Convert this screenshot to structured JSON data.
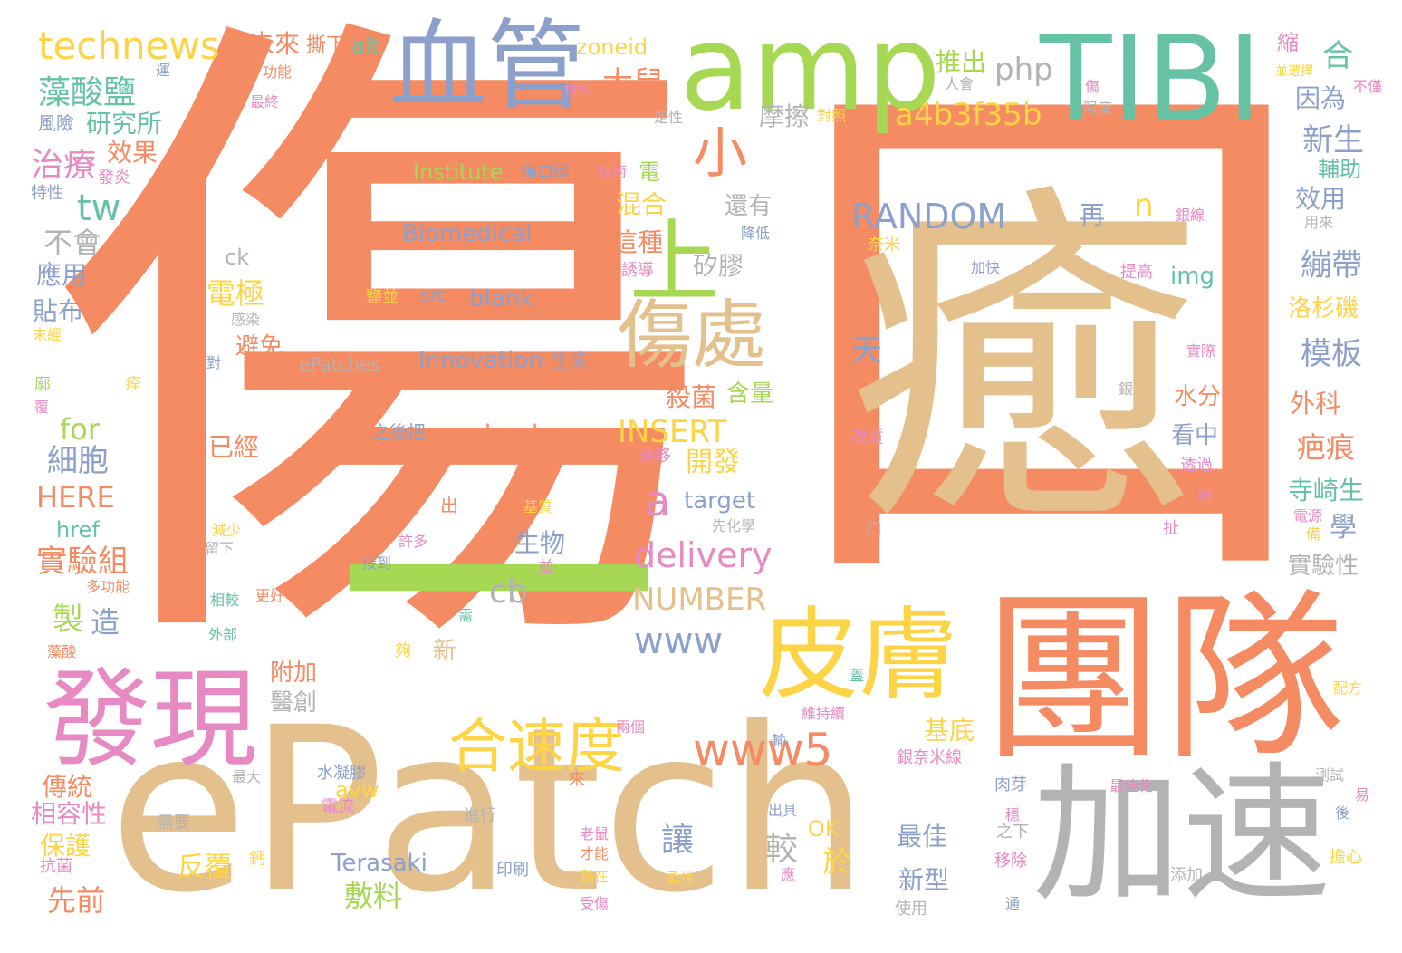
{
  "words": [
    {
      "text": "傷",
      "color": "#f48b63",
      "orient": "h"
    },
    {
      "text": "口",
      "color": "#f48b63",
      "orient": "h"
    },
    {
      "text": "癒",
      "color": "#e4c08c",
      "orient": "h"
    },
    {
      "text": "ePatch",
      "color": "#e4c08c",
      "orient": "h"
    },
    {
      "text": "團隊",
      "color": "#f48b63",
      "orient": "h"
    },
    {
      "text": "加速",
      "color": "#b3b3b3",
      "orient": "h"
    },
    {
      "text": "皮膚",
      "color": "#fdd445",
      "orient": "h"
    },
    {
      "text": "發現",
      "color": "#e78ac3",
      "orient": "h"
    },
    {
      "text": "amp",
      "color": "#a6d854",
      "orient": "h"
    },
    {
      "text": "TIBI",
      "color": "#66c2a5",
      "orient": "h"
    },
    {
      "text": "血管",
      "color": "#8da0cb",
      "orient": "h"
    },
    {
      "text": "一",
      "color": "#a6d854",
      "orient": "h"
    },
    {
      "text": "上",
      "color": "#a6d854",
      "orient": "h"
    },
    {
      "text": "傷處",
      "color": "#e4c08c",
      "orient": "h"
    },
    {
      "text": "合速度",
      "color": "#fdd445",
      "orient": "h"
    },
    {
      "text": "www5",
      "color": "#f48b63",
      "orient": "h"
    },
    {
      "text": "technews",
      "color": "#fdd445",
      "orient": "h"
    },
    {
      "text": "藻酸鹽",
      "color": "#66c2a5",
      "orient": "h"
    },
    {
      "text": "研究所",
      "color": "#66c2a5",
      "orient": "h"
    },
    {
      "text": "風險",
      "color": "#8da0cb",
      "orient": "h"
    },
    {
      "text": "治療",
      "color": "#e78ac3",
      "orient": "h"
    },
    {
      "text": "效果",
      "color": "#f48b63",
      "orient": "h"
    },
    {
      "text": "發炎",
      "color": "#e78ac3",
      "orient": "h"
    },
    {
      "text": "特性",
      "color": "#8da0cb",
      "orient": "h"
    },
    {
      "text": "tw",
      "color": "#66c2a5",
      "orient": "h"
    },
    {
      "text": "不會",
      "color": "#b3b3b3",
      "orient": "h"
    },
    {
      "text": "應用",
      "color": "#8da0cb",
      "orient": "h"
    },
    {
      "text": "貼布",
      "color": "#8da0cb",
      "orient": "h"
    },
    {
      "text": "未經",
      "color": "#fdd445",
      "orient": "h"
    },
    {
      "text": "for",
      "color": "#a6d854",
      "orient": "h"
    },
    {
      "text": "細胞",
      "color": "#8da0cb",
      "orient": "h"
    },
    {
      "text": "HERE",
      "color": "#f48b63",
      "orient": "h"
    },
    {
      "text": "href",
      "color": "#66c2a5",
      "orient": "h"
    },
    {
      "text": "實驗組",
      "color": "#f48b63",
      "orient": "h"
    },
    {
      "text": "製",
      "color": "#a6d854",
      "orient": "h"
    },
    {
      "text": "造",
      "color": "#8da0cb",
      "orient": "h"
    },
    {
      "text": "傳統",
      "color": "#f48b63",
      "orient": "h"
    },
    {
      "text": "相容性",
      "color": "#e78ac3",
      "orient": "h"
    },
    {
      "text": "保護",
      "color": "#fdd445",
      "orient": "h"
    },
    {
      "text": "抗菌",
      "color": "#e78ac3",
      "orient": "h"
    },
    {
      "text": "先前",
      "color": "#f48b63",
      "orient": "h"
    },
    {
      "text": "未來",
      "color": "#f48b63",
      "orient": "h"
    },
    {
      "text": "撕下",
      "color": "#f48b63",
      "orient": "h"
    },
    {
      "text": "alt",
      "color": "#66c2a5",
      "orient": "h"
    },
    {
      "text": "zoneid",
      "color": "#fdd445",
      "orient": "h"
    },
    {
      "text": "功能",
      "color": "#f48b63",
      "orient": "h"
    },
    {
      "text": "材料",
      "color": "#e78ac3",
      "orient": "h"
    },
    {
      "text": "大鼠",
      "color": "#f48b63",
      "orient": "h"
    },
    {
      "text": "小",
      "color": "#f48b63",
      "orient": "h"
    },
    {
      "text": "Institute",
      "color": "#a6d854",
      "orient": "h"
    },
    {
      "text": "傷口僅",
      "color": "#8da0cb",
      "orient": "h"
    },
    {
      "text": "希望",
      "color": "#f48b63",
      "orient": "h"
    },
    {
      "text": "技術",
      "color": "#e78ac3",
      "orient": "h"
    },
    {
      "text": "Biomedical",
      "color": "#8da0cb",
      "orient": "h"
    },
    {
      "text": "ck",
      "color": "#b3b3b3",
      "orient": "h"
    },
    {
      "text": "src",
      "color": "#8da0cb",
      "orient": "h"
    },
    {
      "text": "blank",
      "color": "#8da0cb",
      "orient": "h"
    },
    {
      "text": "電極",
      "color": "#fdd445",
      "orient": "h"
    },
    {
      "text": "避免",
      "color": "#f48b63",
      "orient": "h"
    },
    {
      "text": "感染",
      "color": "#b3b3b3",
      "orient": "h"
    },
    {
      "text": "ePatches",
      "color": "#b3b3b3",
      "orient": "h"
    },
    {
      "text": "Innovation",
      "color": "#8da0cb",
      "orient": "h"
    },
    {
      "text": "生成",
      "color": "#8da0cb",
      "orient": "h"
    },
    {
      "text": "之後把",
      "color": "#8da0cb",
      "orient": "h"
    },
    {
      "text": "border",
      "color": "#f48b63",
      "orient": "h"
    },
    {
      "text": "已經",
      "color": "#f48b63",
      "orient": "h"
    },
    {
      "text": "INSERT",
      "color": "#fdd445",
      "orient": "h"
    },
    {
      "text": "開發",
      "color": "#fdd445",
      "orient": "h"
    },
    {
      "text": "殺菌",
      "color": "#f48b63",
      "orient": "h"
    },
    {
      "text": "含量",
      "color": "#a6d854",
      "orient": "h"
    },
    {
      "text": "a",
      "color": "#e78ac3",
      "orient": "h"
    },
    {
      "text": "target",
      "color": "#8da0cb",
      "orient": "h"
    },
    {
      "text": "delivery",
      "color": "#e78ac3",
      "orient": "h"
    },
    {
      "text": "cb",
      "color": "#b3b3b3",
      "orient": "h"
    },
    {
      "text": "NUMBER",
      "color": "#e4c08c",
      "orient": "h"
    },
    {
      "text": "www",
      "color": "#8da0cb",
      "orient": "h"
    },
    {
      "text": "生物",
      "color": "#8da0cb",
      "orient": "h"
    },
    {
      "text": "附加",
      "color": "#f48b63",
      "orient": "h"
    },
    {
      "text": "醫創",
      "color": "#b3b3b3",
      "orient": "h"
    },
    {
      "text": "新",
      "color": "#e4c08c",
      "orient": "h"
    },
    {
      "text": "php",
      "color": "#b3b3b3",
      "orient": "h"
    },
    {
      "text": "推出",
      "color": "#a6d854",
      "orient": "h"
    },
    {
      "text": "人會",
      "color": "#b3b3b3",
      "orient": "h"
    },
    {
      "text": "a4b3f35b",
      "color": "#fdd445",
      "orient": "h"
    },
    {
      "text": "摩擦",
      "color": "#b3b3b3",
      "orient": "h"
    },
    {
      "text": "對照",
      "color": "#fdd445",
      "orient": "h"
    },
    {
      "text": "定性",
      "color": "#b3b3b3",
      "orient": "h"
    },
    {
      "text": "RANDOM",
      "color": "#8da0cb",
      "orient": "h"
    },
    {
      "text": "n",
      "color": "#fdd445",
      "orient": "h"
    },
    {
      "text": "再",
      "color": "#8da0cb",
      "orient": "h"
    },
    {
      "text": "img",
      "color": "#66c2a5",
      "orient": "h"
    },
    {
      "text": "混合",
      "color": "#fdd445",
      "orient": "h"
    },
    {
      "text": "這種",
      "color": "#f48b63",
      "orient": "h"
    },
    {
      "text": "誘導",
      "color": "#e78ac3",
      "orient": "h"
    },
    {
      "text": "還有",
      "color": "#b3b3b3",
      "orient": "h"
    },
    {
      "text": "降低",
      "color": "#8da0cb",
      "orient": "h"
    },
    {
      "text": "矽膠",
      "color": "#b3b3b3",
      "orient": "h"
    },
    {
      "text": "天",
      "color": "#8da0cb",
      "orient": "h"
    },
    {
      "text": "合",
      "color": "#66c2a5",
      "orient": "h"
    },
    {
      "text": "因為",
      "color": "#8da0cb",
      "orient": "h"
    },
    {
      "text": "新生",
      "color": "#8da0cb",
      "orient": "h"
    },
    {
      "text": "輔助",
      "color": "#66c2a5",
      "orient": "h"
    },
    {
      "text": "效用",
      "color": "#8da0cb",
      "orient": "h"
    },
    {
      "text": "用來",
      "color": "#b3b3b3",
      "orient": "h"
    },
    {
      "text": "繃帶",
      "color": "#8da0cb",
      "orient": "h"
    },
    {
      "text": "洛杉磯",
      "color": "#fdd445",
      "orient": "h"
    },
    {
      "text": "模板",
      "color": "#8da0cb",
      "orient": "h"
    },
    {
      "text": "外科",
      "color": "#f48b63",
      "orient": "h"
    },
    {
      "text": "疤痕",
      "color": "#f48b63",
      "orient": "h"
    },
    {
      "text": "寺崎生",
      "color": "#66c2a5",
      "orient": "h"
    },
    {
      "text": "電源",
      "color": "#e78ac3",
      "orient": "h"
    },
    {
      "text": "實驗性",
      "color": "#b3b3b3",
      "orient": "h"
    },
    {
      "text": "學",
      "color": "#8da0cb",
      "orient": "h"
    },
    {
      "text": "水分",
      "color": "#f48b63",
      "orient": "h"
    },
    {
      "text": "看中",
      "color": "#8da0cb",
      "orient": "h"
    },
    {
      "text": "透過",
      "color": "#e78ac3",
      "orient": "h"
    },
    {
      "text": "遷移",
      "color": "#e78ac3",
      "orient": "h"
    },
    {
      "text": "改質",
      "color": "#e78ac3",
      "orient": "h"
    },
    {
      "text": "奈米",
      "color": "#fdd445",
      "orient": "h"
    },
    {
      "text": "加快",
      "color": "#8da0cb",
      "orient": "h"
    },
    {
      "text": "提高",
      "color": "#e78ac3",
      "orient": "h"
    },
    {
      "text": "實際",
      "color": "#e78ac3",
      "orient": "h"
    },
    {
      "text": "基底",
      "color": "#fdd445",
      "orient": "h"
    },
    {
      "text": "較",
      "color": "#b3b3b3",
      "orient": "h"
    },
    {
      "text": "讓",
      "color": "#8da0cb",
      "orient": "h"
    },
    {
      "text": "於",
      "color": "#fdd445",
      "orient": "h"
    },
    {
      "text": "OK",
      "color": "#fdd445",
      "orient": "h"
    },
    {
      "text": "最佳",
      "color": "#8da0cb",
      "orient": "h"
    },
    {
      "text": "新型",
      "color": "#8da0cb",
      "orient": "h"
    },
    {
      "text": "敷料",
      "color": "#a6d854",
      "orient": "h"
    },
    {
      "text": "Terasaki",
      "color": "#8da0cb",
      "orient": "h"
    },
    {
      "text": "印刷",
      "color": "#8da0cb",
      "orient": "h"
    },
    {
      "text": "反覆",
      "color": "#fdd445",
      "orient": "h"
    },
    {
      "text": "水凝膠",
      "color": "#8da0cb",
      "orient": "h"
    },
    {
      "text": "電流",
      "color": "#e78ac3",
      "orient": "h"
    },
    {
      "text": "avw",
      "color": "#fdd445",
      "orient": "h"
    },
    {
      "text": "進行",
      "color": "#b3b3b3",
      "orient": "h"
    },
    {
      "text": "老鼠",
      "color": "#e78ac3",
      "orient": "h"
    },
    {
      "text": "才能",
      "color": "#f48b63",
      "orient": "h"
    },
    {
      "text": "黏在",
      "color": "#fdd445",
      "orient": "h"
    },
    {
      "text": "柔性",
      "color": "#fdd445",
      "orient": "h"
    },
    {
      "text": "受傷",
      "color": "#e78ac3",
      "orient": "h"
    },
    {
      "text": "兩個",
      "color": "#e78ac3",
      "orient": "h"
    },
    {
      "text": "維持續",
      "color": "#e78ac3",
      "orient": "h"
    },
    {
      "text": "銀奈米線",
      "color": "#e78ac3",
      "orient": "h"
    },
    {
      "text": "肉芽",
      "color": "#8da0cb",
      "orient": "h"
    },
    {
      "text": "最佳化",
      "color": "#e78ac3",
      "orient": "h"
    },
    {
      "text": "測試",
      "color": "#b3b3b3",
      "orient": "h"
    },
    {
      "text": "出具",
      "color": "#8da0cb",
      "orient": "h"
    },
    {
      "text": "之下",
      "color": "#b3b3b3",
      "orient": "h"
    },
    {
      "text": "移除",
      "color": "#e78ac3",
      "orient": "h"
    },
    {
      "text": "添加",
      "color": "#b3b3b3",
      "orient": "h"
    },
    {
      "text": "擔心",
      "color": "#fdd445",
      "orient": "h"
    },
    {
      "text": "使用",
      "color": "#b3b3b3",
      "orient": "h"
    },
    {
      "text": "配方",
      "color": "#fdd445",
      "orient": "h"
    },
    {
      "text": "需要",
      "color": "#b3b3b3",
      "orient": "h"
    },
    {
      "text": "最大",
      "color": "#b3b3b3",
      "orient": "h"
    },
    {
      "text": "更好",
      "color": "#f48b63",
      "orient": "h"
    },
    {
      "text": "相較",
      "color": "#66c2a5",
      "orient": "h"
    },
    {
      "text": "外部",
      "color": "#66c2a5",
      "orient": "h"
    },
    {
      "text": "減少",
      "color": "#fdd445",
      "orient": "h"
    },
    {
      "text": "留下",
      "color": "#b3b3b3",
      "orient": "h"
    },
    {
      "text": "多功能",
      "color": "#f48b63",
      "orient": "h"
    },
    {
      "text": "藻酸",
      "color": "#f48b63",
      "orient": "h"
    },
    {
      "text": "許多",
      "color": "#e78ac3",
      "orient": "h"
    },
    {
      "text": "接到",
      "color": "#8da0cb",
      "orient": "h"
    },
    {
      "text": "先化學",
      "color": "#b3b3b3",
      "orient": "h"
    },
    {
      "text": "基質",
      "color": "#fdd445",
      "orient": "h"
    },
    {
      "text": "鹽並",
      "color": "#fdd445",
      "orient": "h"
    },
    {
      "text": "最終",
      "color": "#e78ac3",
      "orient": "h"
    },
    {
      "text": "鈣",
      "color": "#fdd445",
      "orient": "h"
    },
    {
      "text": "電",
      "color": "#a6d854",
      "orient": "h"
    },
    {
      "text": "出",
      "color": "#f48b63",
      "orient": "h"
    },
    {
      "text": "並",
      "color": "#e78ac3",
      "orient": "h"
    },
    {
      "text": "夠",
      "color": "#fdd445",
      "orient": "h"
    },
    {
      "text": "來",
      "color": "#f48b63",
      "orient": "h"
    },
    {
      "text": "應",
      "color": "#e78ac3",
      "orient": "h"
    },
    {
      "text": "口",
      "color": "#b3b3b3",
      "orient": "h"
    },
    {
      "text": "扯",
      "color": "#e78ac3",
      "orient": "h"
    },
    {
      "text": "運",
      "color": "#8da0cb",
      "orient": "h"
    },
    {
      "text": "對",
      "color": "#8da0cb",
      "orient": "h"
    },
    {
      "text": "輸",
      "color": "#8da0cb",
      "orient": "h"
    },
    {
      "text": "需",
      "color": "#66c2a5",
      "orient": "h"
    },
    {
      "text": "蓋",
      "color": "#66c2a5",
      "orient": "h"
    },
    {
      "text": "穩",
      "color": "#e78ac3",
      "orient": "h"
    },
    {
      "text": "通",
      "color": "#8da0cb",
      "orient": "h"
    },
    {
      "text": "後",
      "color": "#8da0cb",
      "orient": "h"
    },
    {
      "text": "易",
      "color": "#e78ac3",
      "orient": "h"
    },
    {
      "text": "備",
      "color": "#fdd445",
      "orient": "h"
    },
    {
      "text": "種",
      "color": "#e78ac3",
      "orient": "h"
    },
    {
      "text": "銀",
      "color": "#b3b3b3",
      "orient": "h"
    },
    {
      "text": "廓",
      "color": "#a6d854",
      "orient": "h"
    },
    {
      "text": "覆",
      "color": "#e78ac3",
      "orient": "h"
    },
    {
      "text": "痊",
      "color": "#fdd445",
      "orient": "h"
    },
    {
      "text": "限度",
      "color": "#b3b3b3",
      "orient": "h"
    },
    {
      "text": "銀線",
      "color": "#e78ac3",
      "orient": "h"
    },
    {
      "text": "傷",
      "color": "#e78ac3",
      "orient": "h"
    },
    {
      "text": "並選擇",
      "color": "#fdd445",
      "orient": "h"
    },
    {
      "text": "不僅",
      "color": "#e78ac3",
      "orient": "h"
    },
    {
      "text": "縮",
      "color": "#e78ac3",
      "orient": "h"
    }
  ]
}
